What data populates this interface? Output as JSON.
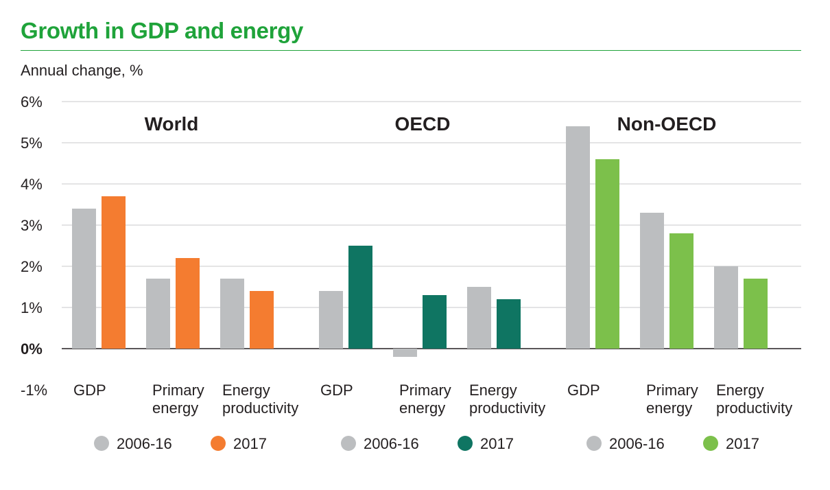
{
  "title": "Growth in GDP and energy",
  "subtitle": "Annual change, %",
  "colors": {
    "title": "#1fa33a",
    "period_bar": "#bcbec0",
    "world_2017": "#f47c30",
    "oecd_2017": "#0f7562",
    "non_oecd_2017": "#7cc04b",
    "grid": "#c9cacb",
    "axis": "#231f20"
  },
  "chart_data": {
    "type": "bar",
    "ylabel": "Annual change, %",
    "ylim": [
      -1,
      6
    ],
    "yticks": [
      "-1%",
      "0%",
      "1%",
      "2%",
      "3%",
      "4%",
      "5%",
      "6%"
    ],
    "grid": true,
    "groups": [
      {
        "name": "World",
        "categories": [
          [
            "GDP"
          ],
          [
            "Primary",
            "energy"
          ],
          [
            "Energy",
            "productivity"
          ]
        ],
        "series": [
          {
            "name": "2006-16",
            "color": "#bcbec0",
            "values": [
              3.4,
              1.7,
              1.7
            ]
          },
          {
            "name": "2017",
            "color": "#f47c30",
            "values": [
              3.7,
              2.2,
              1.4
            ]
          }
        ]
      },
      {
        "name": "OECD",
        "categories": [
          [
            "GDP"
          ],
          [
            "Primary",
            "energy"
          ],
          [
            "Energy",
            "productivity"
          ]
        ],
        "series": [
          {
            "name": "2006-16",
            "color": "#bcbec0",
            "values": [
              1.4,
              -0.2,
              1.5
            ]
          },
          {
            "name": "2017",
            "color": "#0f7562",
            "values": [
              2.5,
              1.3,
              1.2
            ]
          }
        ]
      },
      {
        "name": "Non-OECD",
        "categories": [
          [
            "GDP"
          ],
          [
            "Primary",
            "energy"
          ],
          [
            "Energy",
            "productivity"
          ]
        ],
        "series": [
          {
            "name": "2006-16",
            "color": "#bcbec0",
            "values": [
              5.4,
              3.3,
              2.0
            ]
          },
          {
            "name": "2017",
            "color": "#7cc04b",
            "values": [
              4.6,
              2.8,
              1.7
            ]
          }
        ]
      }
    ]
  }
}
